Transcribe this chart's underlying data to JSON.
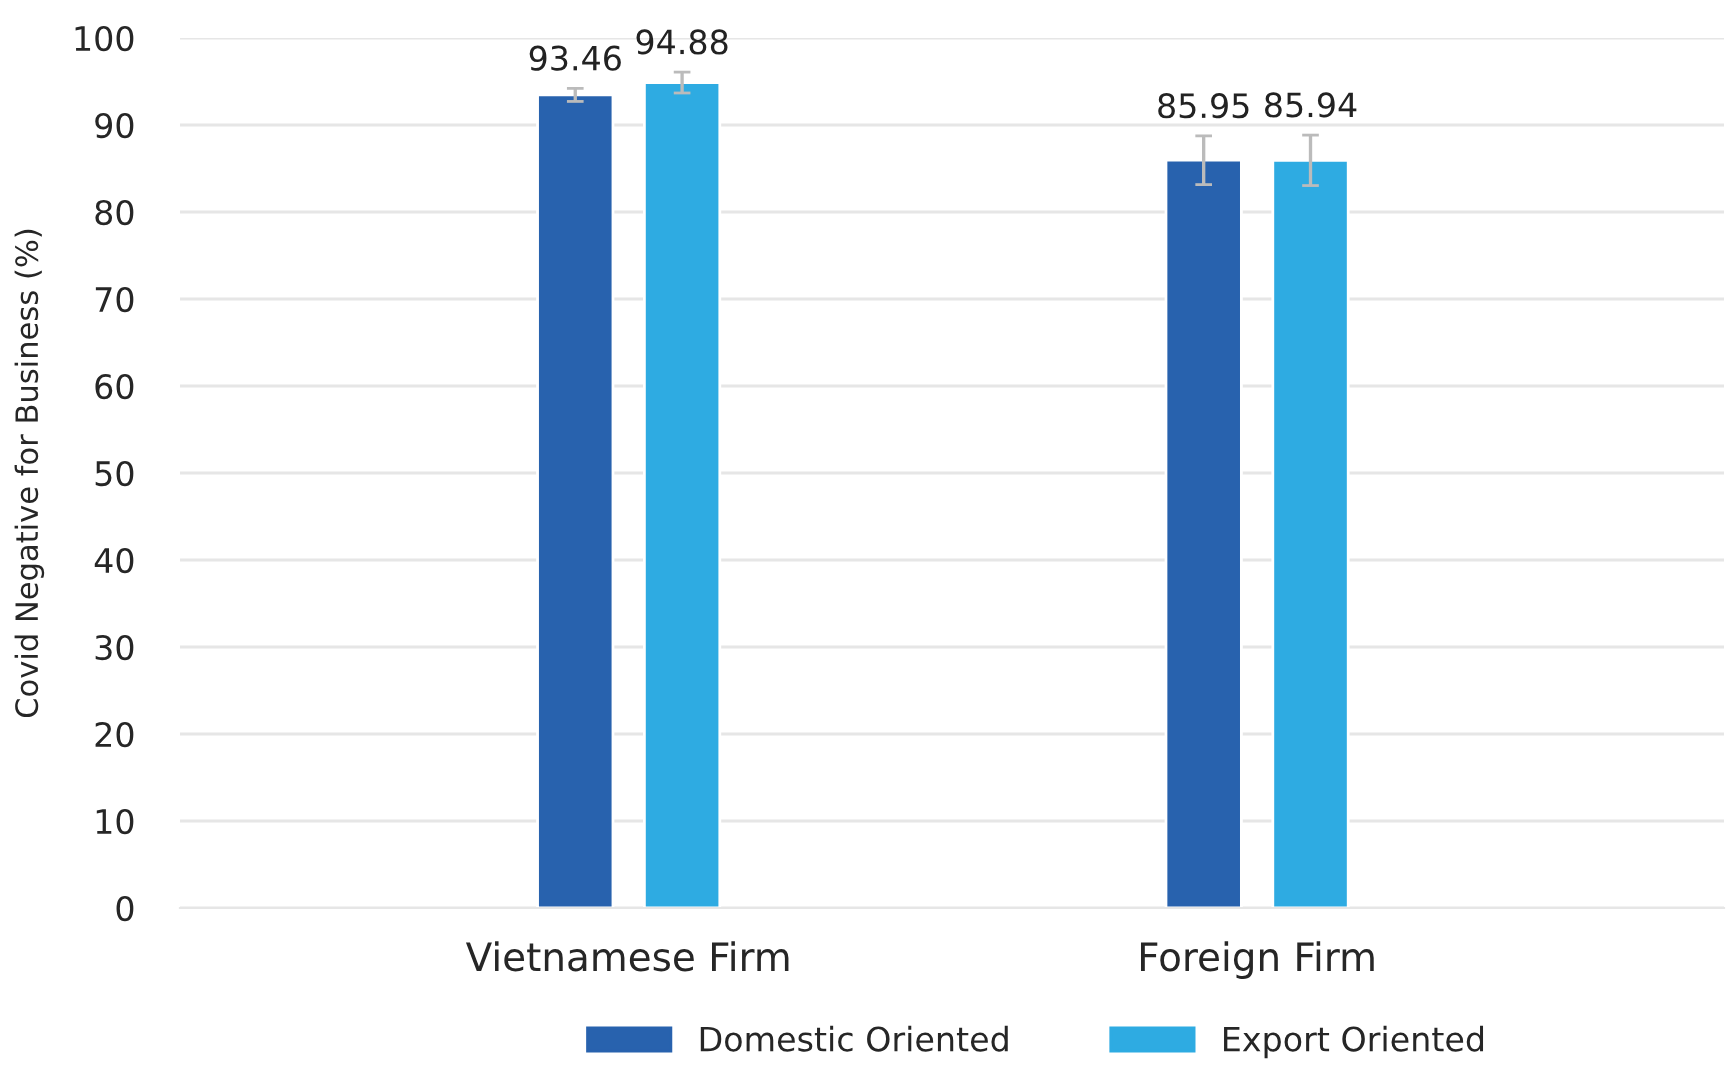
{
  "chart_data": {
    "type": "bar",
    "ylabel": "Covid Negative for Business (%)",
    "categories": [
      "Vietnamese Firm",
      "Foreign Firm"
    ],
    "series": [
      {
        "name": "Domestic Oriented",
        "color": "#2862ae",
        "values": [
          93.46,
          85.95
        ],
        "errors": [
          0.75,
          2.8
        ]
      },
      {
        "name": "Export Oriented",
        "color": "#2eabe2",
        "values": [
          94.88,
          85.94
        ],
        "errors": [
          1.2,
          2.9
        ]
      }
    ],
    "ylim": [
      0,
      100
    ],
    "yticks": [
      0,
      10,
      20,
      30,
      40,
      50,
      60,
      70,
      80,
      90,
      100
    ],
    "grid": "y",
    "legend": "bottom",
    "data_labels": true
  }
}
